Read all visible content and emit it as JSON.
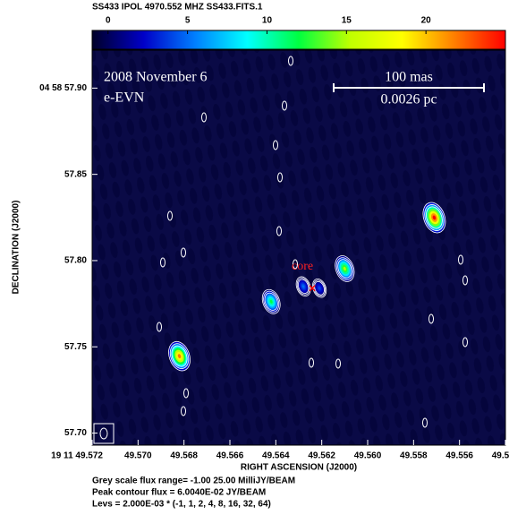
{
  "chart_data": {
    "type": "image",
    "header": "SS433  IPOL  4970.552 MHZ  SS433.FITS.1",
    "colorbar": {
      "lim": [
        -1,
        25
      ],
      "ticks": [
        0,
        5,
        10,
        15,
        20
      ]
    },
    "colormap": [
      "#000028",
      "#0000c8",
      "#0080ff",
      "#00ffff",
      "#00ff40",
      "#c0ff00",
      "#ffff00",
      "#ff8000",
      "#ff0000"
    ],
    "background": "#0a0a46",
    "contour_color": "#ffffff",
    "xlabel": "RIGHT ASCENSION (J2000)",
    "ylabel": "DECLINATION (J2000)",
    "xlim": [
      49.572,
      49.554
    ],
    "ylim": [
      57.693,
      57.922
    ],
    "xticks": [
      {
        "value": 49.572,
        "label": "19 11 49.572"
      },
      {
        "value": 49.57,
        "label": "49.570"
      },
      {
        "value": 49.568,
        "label": "49.568"
      },
      {
        "value": 49.566,
        "label": "49.566"
      },
      {
        "value": 49.564,
        "label": "49.564"
      },
      {
        "value": 49.562,
        "label": "49.562"
      },
      {
        "value": 49.56,
        "label": "49.560"
      },
      {
        "value": 49.558,
        "label": "49.558"
      },
      {
        "value": 49.556,
        "label": "49.556"
      },
      {
        "value": 49.554,
        "label": "49.554"
      }
    ],
    "yticks": [
      {
        "value": 57.9,
        "label": "04 58 57.90"
      },
      {
        "value": 57.85,
        "label": "57.85"
      },
      {
        "value": 57.8,
        "label": "57.80"
      },
      {
        "value": 57.75,
        "label": "57.75"
      },
      {
        "value": 57.7,
        "label": "57.70"
      }
    ],
    "annotations": {
      "date": "2008 November 6",
      "array": "e-EVN",
      "scale_angular": "100 mas",
      "scale_linear": "0.0026 pc",
      "core": "core"
    },
    "components": {
      "ra": [
        49.5571,
        49.5682,
        49.5642,
        49.561,
        49.5628,
        49.5621
      ],
      "dec": [
        57.8249,
        57.7446,
        57.7762,
        57.7953,
        57.785,
        57.784
      ],
      "peak": [
        25,
        22,
        12,
        15,
        5,
        4
      ]
    },
    "footer": [
      "Grey scale flux range= -1.00 25.00 MilliJY/BEAM",
      "Peak contour flux = 6.0040E-02 JY/BEAM",
      "Levs = 2.000E-03 * (-1, 1, 2, 4, 8, 16, 32, 64)"
    ]
  }
}
